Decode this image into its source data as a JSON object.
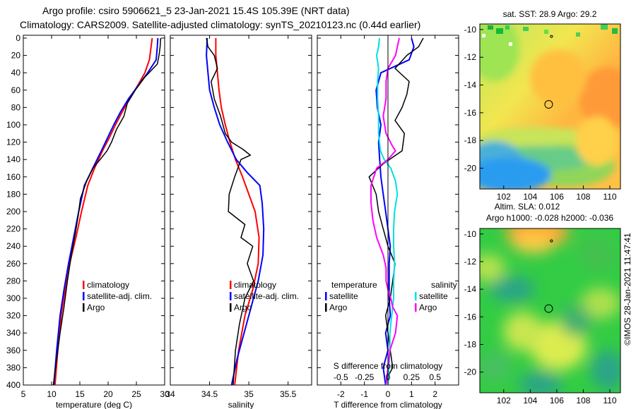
{
  "title": {
    "line1": "Argo profile: csiro 5906621_5 23-Jan-2021 15.4S 105.39E (NRT data)",
    "line2": "Climatology: CARS2009. Satellite-adjusted climatology: synTS_20210123.nc (0.44d earlier)"
  },
  "colors": {
    "climatology": "#ff0000",
    "satellite": "#0000ff",
    "argo": "#000000",
    "satellite_salinity": "#00e0e0",
    "argo_salinity": "#ff00ff"
  },
  "credit": "©IMOS 28-Jan-2021 11:47:41",
  "chart_data": [
    {
      "id": "temperature",
      "type": "line",
      "xlabel": "temperature (deg C)",
      "ylabel": "",
      "xlim": [
        5,
        30
      ],
      "ylim": [
        400,
        0
      ],
      "xticks": [
        "5",
        "10",
        "15",
        "20",
        "25",
        "30"
      ],
      "yticks": [
        "0",
        "20",
        "40",
        "60",
        "80",
        "100",
        "120",
        "140",
        "160",
        "180",
        "200",
        "220",
        "240",
        "260",
        "280",
        "300",
        "320",
        "340",
        "360",
        "380",
        "400"
      ],
      "legend": [
        {
          "label": "climatology",
          "color_key": "climatology"
        },
        {
          "label": "satellite-adj. clim.",
          "color_key": "satellite"
        },
        {
          "label": "Argo",
          "color_key": "argo"
        }
      ],
      "series": [
        {
          "name": "climatology",
          "color_key": "climatology",
          "x": [
            27.8,
            27.6,
            27.3,
            26.5,
            25.2,
            23.8,
            22.5,
            21.3,
            20.2,
            19.0,
            17.6,
            16.4,
            15.3,
            14.3,
            13.2,
            12.4,
            11.7,
            11.1,
            10.6
          ],
          "y": [
            0,
            10,
            25,
            40,
            55,
            70,
            85,
            100,
            115,
            130,
            150,
            170,
            200,
            230,
            260,
            290,
            320,
            360,
            400
          ]
        },
        {
          "name": "satellite-adj. clim.",
          "color_key": "satellite",
          "x": [
            28.8,
            28.7,
            28.5,
            27.0,
            25.3,
            23.6,
            22.2,
            21.0,
            19.9,
            18.8,
            17.3,
            15.8,
            14.8,
            13.9,
            13.0,
            12.2,
            11.5,
            10.9,
            10.4
          ],
          "y": [
            0,
            10,
            25,
            40,
            55,
            70,
            85,
            100,
            115,
            130,
            150,
            170,
            200,
            230,
            260,
            290,
            320,
            360,
            400
          ]
        },
        {
          "name": "Argo",
          "color_key": "argo",
          "x": [
            29.3,
            29.2,
            29.0,
            28.7,
            26.5,
            24.8,
            23.4,
            22.8,
            21.5,
            20.6,
            19.8,
            18.6,
            17.3,
            16.2,
            15.1,
            14.7,
            14.2,
            13.5,
            12.8,
            12.2,
            11.5,
            10.9,
            10.3
          ],
          "y": [
            0,
            10,
            20,
            30,
            45,
            60,
            75,
            90,
            105,
            120,
            130,
            140,
            150,
            165,
            185,
            205,
            225,
            250,
            280,
            310,
            340,
            370,
            400
          ]
        }
      ]
    },
    {
      "id": "salinity",
      "type": "line",
      "xlabel": "salinity",
      "ylabel": "",
      "xlim": [
        34,
        35.8
      ],
      "ylim": [
        400,
        0
      ],
      "xticks": [
        "34",
        "34.5",
        "35",
        "35.5"
      ],
      "legend": [
        {
          "label": "climatology",
          "color_key": "climatology"
        },
        {
          "label": "satellite-adj. clim.",
          "color_key": "satellite"
        },
        {
          "label": "Argo",
          "color_key": "argo"
        }
      ],
      "series": [
        {
          "name": "climatology",
          "color_key": "climatology",
          "x": [
            34.58,
            34.58,
            34.6,
            34.62,
            34.65,
            34.7,
            34.76,
            34.83,
            34.92,
            35.0,
            35.08,
            35.13,
            35.12,
            35.05,
            34.95,
            34.87,
            34.82
          ],
          "y": [
            0,
            20,
            40,
            60,
            80,
            100,
            120,
            140,
            160,
            180,
            200,
            230,
            260,
            290,
            320,
            360,
            400
          ]
        },
        {
          "name": "satellite-adj. clim.",
          "color_key": "satellite",
          "x": [
            34.47,
            34.46,
            34.48,
            34.5,
            34.56,
            34.63,
            34.73,
            34.84,
            34.98,
            35.14,
            35.17,
            35.19,
            35.18,
            35.12,
            35.03,
            34.94,
            34.85,
            34.78
          ],
          "y": [
            0,
            20,
            40,
            60,
            80,
            100,
            120,
            140,
            155,
            170,
            190,
            220,
            250,
            280,
            310,
            340,
            370,
            400
          ]
        },
        {
          "name": "Argo",
          "color_key": "argo",
          "x": [
            34.46,
            34.48,
            34.56,
            34.6,
            34.52,
            34.56,
            34.64,
            34.7,
            34.78,
            34.92,
            35.02,
            34.9,
            34.86,
            34.82,
            34.75,
            34.74,
            34.95,
            34.9,
            35.05,
            34.98,
            35.06,
            34.95,
            34.88,
            34.83,
            34.8
          ],
          "y": [
            0,
            10,
            20,
            35,
            50,
            70,
            90,
            110,
            120,
            128,
            135,
            140,
            150,
            160,
            180,
            200,
            215,
            230,
            240,
            260,
            280,
            300,
            330,
            360,
            400
          ]
        }
      ]
    },
    {
      "id": "differences",
      "type": "line",
      "xlabel": "T difference from climatology",
      "ylabel": "",
      "xlim": [
        -3,
        3
      ],
      "ylim": [
        400,
        0
      ],
      "xticks": [
        "-2",
        "-1",
        "0",
        "1",
        "2"
      ],
      "top_axis": {
        "label": "S difference from climatology",
        "xlim": [
          -0.75,
          0.75
        ],
        "ticks": [
          "-0.5",
          "-0.25",
          "0",
          "0.25",
          "0.5"
        ]
      },
      "legend": [
        {
          "label": "temperature",
          "color_key": ""
        },
        {
          "label": "salinity",
          "color_key": ""
        },
        {
          "label": "satellite",
          "color_key": "satellite"
        },
        {
          "label": "satellite",
          "color_key": "satellite_salinity"
        },
        {
          "label": "Argo",
          "color_key": "argo"
        },
        {
          "label": "Argo",
          "color_key": "argo_salinity"
        }
      ],
      "series": [
        {
          "name": "T satellite",
          "color_key": "satellite",
          "x": [
            1.0,
            1.1,
            0.9,
            -0.3,
            -0.5,
            -0.45,
            -0.3,
            -0.4,
            -0.35,
            -0.3,
            -0.2,
            -0.1,
            0.0,
            0.1,
            0.05,
            0.05,
            0.05,
            0.1,
            -0.1,
            0.0,
            -0.2,
            -0.1
          ],
          "y": [
            0,
            10,
            25,
            40,
            60,
            80,
            100,
            120,
            140,
            160,
            180,
            200,
            220,
            240,
            260,
            280,
            300,
            320,
            340,
            360,
            380,
            400
          ]
        },
        {
          "name": "T Argo",
          "color_key": "argo",
          "x": [
            1.5,
            1.3,
            0.8,
            0.3,
            0.9,
            0.8,
            0.6,
            0.3,
            0.7,
            0.6,
            -0.2,
            -0.8,
            -0.5,
            -0.4,
            -0.2,
            0.0,
            0.3,
            0.2,
            0.1,
            -0.1,
            0.0,
            0.1,
            0.2,
            0.0,
            -0.1
          ],
          "y": [
            0,
            10,
            20,
            35,
            50,
            65,
            80,
            95,
            110,
            130,
            145,
            160,
            180,
            200,
            220,
            240,
            260,
            280,
            300,
            320,
            340,
            360,
            380,
            390,
            400
          ]
        },
        {
          "name": "S satellite",
          "color_key": "satellite_salinity",
          "x": [
            -0.09,
            -0.1,
            -0.12,
            -0.1,
            -0.11,
            -0.11,
            -0.1,
            -0.1,
            -0.08,
            -0.04,
            0.03,
            0.08,
            0.1,
            0.07,
            0.06,
            0.06,
            0.07,
            0.06,
            0.06,
            0.04,
            0.02,
            0.02,
            0.01,
            0.0
          ],
          "y": [
            0,
            10,
            20,
            35,
            50,
            70,
            90,
            110,
            130,
            140,
            150,
            165,
            180,
            200,
            220,
            240,
            260,
            280,
            300,
            320,
            340,
            360,
            380,
            400
          ]
        },
        {
          "name": "S Argo",
          "color_key": "argo_salinity",
          "x": [
            0.12,
            0.1,
            0.08,
            0.0,
            -0.02,
            -0.02,
            -0.05,
            -0.02,
            0.05,
            0.08,
            0.0,
            -0.12,
            -0.18,
            -0.18,
            -0.16,
            -0.12,
            -0.05,
            -0.02,
            -0.02,
            0.0,
            0.03,
            0.05,
            0.1,
            0.08,
            0.02,
            0.0,
            -0.02
          ],
          "y": [
            0,
            10,
            20,
            35,
            50,
            70,
            90,
            110,
            125,
            130,
            140,
            150,
            170,
            190,
            210,
            230,
            250,
            265,
            280,
            290,
            300,
            310,
            320,
            340,
            360,
            380,
            400
          ]
        }
      ]
    },
    {
      "id": "sst_map",
      "type": "heatmap",
      "title": "sat. SST: 28.9 Argo: 29.2",
      "xlim": [
        100.2,
        110.8
      ],
      "ylim": [
        -21.5,
        -9.6
      ],
      "xticks": [
        "102",
        "104",
        "106",
        "108",
        "110"
      ],
      "yticks": [
        "-10",
        "-12",
        "-14",
        "-16",
        "-18",
        "-20"
      ],
      "argo_position": {
        "lon": 105.39,
        "lat": -15.4
      },
      "prev_position": {
        "lon": 105.6,
        "lat": -10.5
      }
    },
    {
      "id": "sla_map",
      "type": "heatmap",
      "title": "Altim. SLA: 0.012",
      "subtitle": "Argo h1000: -0.028 h2000: -0.036",
      "xlim": [
        100.2,
        110.8
      ],
      "ylim": [
        -21.5,
        -9.6
      ],
      "xticks": [
        "102",
        "104",
        "106",
        "108",
        "110"
      ],
      "yticks": [
        "-10",
        "-12",
        "-14",
        "-16",
        "-18",
        "-20"
      ],
      "argo_position": {
        "lon": 105.39,
        "lat": -15.4
      },
      "prev_position": {
        "lon": 105.6,
        "lat": -10.5
      }
    }
  ]
}
